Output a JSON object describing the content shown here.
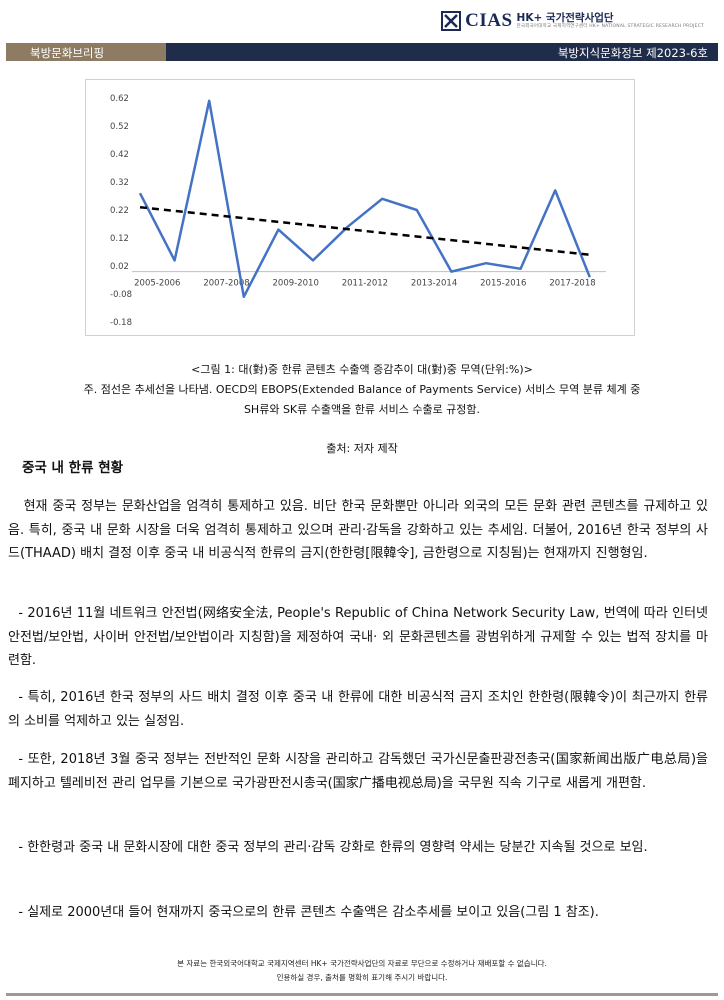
{
  "header": {
    "logo_text": "CIAS",
    "logo_org": "HK+ 국가전략사업단",
    "logo_sub": "한국외국어대학교 국제지역연구센터 HK+ NATIONAL STRATEGIC RESEARCH PROJECT",
    "left_label": "북방문화브리핑",
    "right_label": "북방지식문화정보  제2023-6호",
    "bar_color": "#1f2c4a",
    "tag_color": "#8d7c63"
  },
  "chart_data": {
    "type": "line",
    "categories": [
      "2005",
      "2006",
      "2007",
      "2008",
      "2009",
      "2010",
      "2011",
      "2012",
      "2013",
      "2014",
      "2015",
      "2016",
      "2017",
      "2018"
    ],
    "tick_labels": [
      "2005-2006",
      "2007-2008",
      "2009-2010",
      "2011-2012",
      "2013-2014",
      "2015-2016",
      "2017-2018"
    ],
    "series": [
      {
        "values": [
          0.28,
          0.04,
          0.61,
          -0.09,
          0.15,
          0.04,
          0.16,
          0.26,
          0.22,
          0.0,
          0.03,
          0.01,
          0.29,
          -0.02
        ],
        "color": "#4472c4"
      }
    ],
    "trendline": {
      "start": 0.23,
      "end": 0.06,
      "style": "dashed",
      "color": "#000000"
    },
    "yticks": [
      -0.18,
      -0.08,
      0.02,
      0.12,
      0.22,
      0.32,
      0.42,
      0.52,
      0.62
    ],
    "ylim": [
      -0.18,
      0.62
    ],
    "grid": false,
    "legend": "none",
    "title": "",
    "xlabel": "",
    "ylabel": ""
  },
  "caption": {
    "figure": "<그림 1: 대(對)중 한류 콘텐츠 수출액 증감추이 대(對)중 무역(단위:%)>",
    "note1": "주. 점선은 추세선을 나타냄. OECD의 EBOPS(Extended Balance of Payments Service) 서비스 무역 분류 체계 중",
    "note2": "SH류와 SK류 수출액을 한류 서비스 수출로 규정함.",
    "source": "출처: 저자 제작"
  },
  "section_title": "중국 내 한류 현황",
  "paragraphs": [
    "현재 중국 정부는 문화산업을 엄격히 통제하고 있음. 비단 한국 문화뿐만 아니라 외국의 모든 문화 관련 콘텐츠를 규제하고 있음. 특히, 중국 내 문화 시장을 더욱 엄격히 통제하고 있으며 관리·감독을 강화하고 있는 추세임. 더불어, 2016년 한국 정부의 사드(THAAD) 배치 결정 이후 중국 내 비공식적 한류의 금지(한한령[限韓令], 금한령으로 지칭됨)는 현재까지 진행형임.",
    "- 2016년 11월 네트워크 안전법(网络安全法, People's Republic of China Network Security Law, 번역에 따라 인터넷 안전법/보안법, 사이버 안전법/보안법이라 지칭함)을 제정하여 국내· 외 문화콘텐츠를 광범위하게 규제할 수 있는 법적 장치를 마련함.",
    "- 특히, 2016년 한국 정부의 사드 배치 결정 이후 중국 내 한류에 대한 비공식적 금지 조치인 한한령(限韓令)이 최근까지 한류의 소비를 억제하고 있는 실정임.",
    "- 또한, 2018년 3월 중국 정부는 전반적인 문화 시장을 관리하고 감독했던 국가신문출판광전총국(国家新闻出版广电总局)을 폐지하고 텔레비전 관리 업무를 기본으로 국가광판전시총국(国家广播电视总局)을 국무원 직속 기구로 새롭게 개편함.",
    "- 한한령과 중국 내 문화시장에 대한 중국 정부의 관리·감독 강화로 한류의 영향력 약세는 당분간 지속될 것으로 보임.",
    "- 실제로 2000년대 들어 현재까지 중국으로의 한류 콘텐츠 수출액은 감소추세를 보이고 있음(그림 1 참조)."
  ],
  "footer": {
    "line1": "본 자료는 한국외국어대학교 국제지역센터 HK+ 국가전략사업단의 자료로 무단으로 수정하거나 재배포할 수 없습니다.",
    "line2": "인용하실 경우, 출처를 명확히 표기해 주시기 바랍니다."
  }
}
